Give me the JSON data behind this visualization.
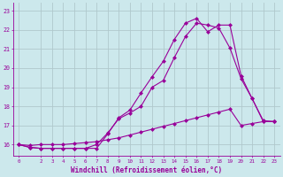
{
  "xlabel": "Windchill (Refroidissement éolien,°C)",
  "background_color": "#cce8ec",
  "line_color": "#990099",
  "grid_color": "#b0c8cc",
  "xlim": [
    -0.5,
    23.5
  ],
  "ylim": [
    15.4,
    23.4
  ],
  "yticks": [
    16,
    17,
    18,
    19,
    20,
    21,
    22,
    23
  ],
  "xticks": [
    0,
    2,
    3,
    4,
    5,
    6,
    7,
    8,
    9,
    10,
    11,
    12,
    13,
    14,
    15,
    16,
    17,
    18,
    19,
    20,
    21,
    22,
    23
  ],
  "line1_x": [
    0,
    1,
    2,
    3,
    4,
    5,
    6,
    7,
    8,
    9,
    10,
    11,
    12,
    13,
    14,
    15,
    16,
    17,
    18,
    19,
    20,
    21,
    22,
    23
  ],
  "line1_y": [
    16.0,
    15.85,
    15.8,
    15.8,
    15.8,
    15.8,
    15.8,
    15.8,
    16.55,
    17.4,
    17.8,
    18.7,
    19.55,
    20.35,
    21.5,
    22.35,
    22.6,
    21.9,
    22.25,
    22.25,
    19.6,
    18.4,
    17.25,
    17.2
  ],
  "line2_x": [
    0,
    1,
    2,
    3,
    4,
    5,
    6,
    7,
    8,
    9,
    10,
    11,
    12,
    13,
    14,
    15,
    16,
    17,
    18,
    19,
    20,
    21,
    22,
    23
  ],
  "line2_y": [
    16.0,
    15.85,
    15.8,
    15.8,
    15.8,
    15.8,
    15.8,
    16.0,
    16.6,
    17.35,
    17.65,
    18.0,
    19.0,
    19.35,
    20.55,
    21.65,
    22.35,
    22.25,
    22.1,
    21.05,
    19.45,
    18.4,
    17.2,
    17.2
  ],
  "line3_x": [
    0,
    1,
    2,
    3,
    4,
    5,
    6,
    7,
    8,
    9,
    10,
    11,
    12,
    13,
    14,
    15,
    16,
    17,
    18,
    19,
    20,
    21,
    22,
    23
  ],
  "line3_y": [
    16.0,
    15.95,
    16.0,
    16.0,
    16.0,
    16.05,
    16.1,
    16.15,
    16.25,
    16.35,
    16.5,
    16.65,
    16.8,
    16.95,
    17.1,
    17.25,
    17.4,
    17.55,
    17.7,
    17.85,
    17.0,
    17.1,
    17.2,
    17.2
  ]
}
